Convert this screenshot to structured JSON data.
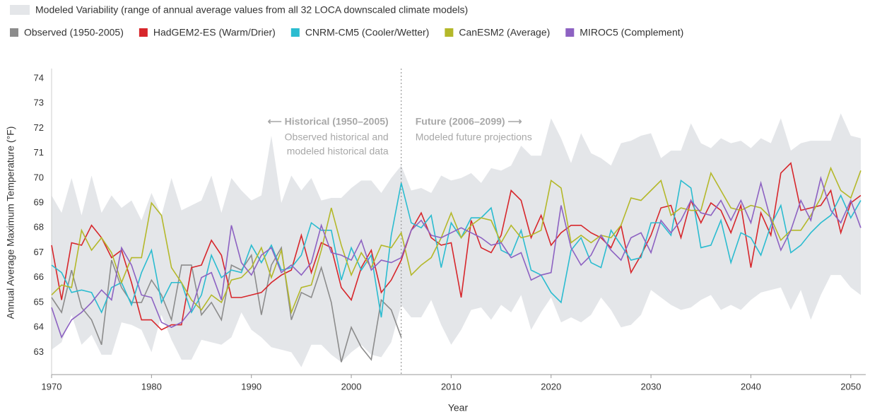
{
  "chart_data": {
    "type": "line",
    "band": {
      "name": "Modeled Variability (range of annual average values from all 32 LOCA downscaled climate models)",
      "color": "#e4e6e9",
      "upper": [
        69.3,
        68.6,
        70.0,
        68.5,
        70.1,
        68.6,
        69.3,
        68.8,
        69.1,
        68.3,
        69.4,
        68.5,
        70.0,
        68.7,
        68.9,
        69.1,
        70.1,
        68.6,
        70.0,
        69.5,
        69.1,
        69.3,
        71.7,
        69.0,
        70.1,
        69.5,
        70.0,
        69.1,
        69.2,
        69.2,
        69.6,
        69.9,
        69.9,
        69.4,
        70.0,
        70.5,
        69.5,
        69.6,
        69.4,
        70.1,
        69.9,
        70.0,
        70.2,
        69.8,
        70.4,
        70.3,
        70.5,
        71.3,
        70.9,
        70.9,
        72.4,
        71.6,
        70.6,
        71.8,
        71.0,
        70.8,
        70.5,
        71.4,
        71.5,
        71.7,
        71.8,
        70.8,
        71.1,
        71.1,
        72.2,
        71.4,
        71.2,
        71.6,
        71.4,
        71.5,
        71.2,
        71.6,
        71.4,
        72.4,
        71.1,
        71.4,
        71.5,
        71.5,
        71.5,
        72.6,
        71.7,
        71.6
      ],
      "lower": [
        63.1,
        63.4,
        64.5,
        63.3,
        63.7,
        62.9,
        62.9,
        64.2,
        64.1,
        63.9,
        63.0,
        64.5,
        63.5,
        62.7,
        62.7,
        63.5,
        63.4,
        63.3,
        63.6,
        64.6,
        63.9,
        63.6,
        63.2,
        63.1,
        63.0,
        62.4,
        63.3,
        63.3,
        62.9,
        62.6,
        63.0,
        63.3,
        62.9,
        62.8,
        63.4,
        64.9,
        64.4,
        64.4,
        65.1,
        64.1,
        63.3,
        63.9,
        64.7,
        64.8,
        64.3,
        64.9,
        64.6,
        65.3,
        63.9,
        64.6,
        65.2,
        64.2,
        64.4,
        64.2,
        64.5,
        65.2,
        64.7,
        64.0,
        64.1,
        64.5,
        65.5,
        65.2,
        64.9,
        64.7,
        64.8,
        65.1,
        65.3,
        64.7,
        64.9,
        64.7,
        65.1,
        65.4,
        65.5,
        65.6,
        64.7,
        65.5,
        64.3,
        65.3,
        66.1,
        66.1,
        65.6,
        65.3
      ]
    },
    "x": [
      1970,
      1971,
      1972,
      1973,
      1974,
      1975,
      1976,
      1977,
      1978,
      1979,
      1980,
      1981,
      1982,
      1983,
      1984,
      1985,
      1986,
      1987,
      1988,
      1989,
      1990,
      1991,
      1992,
      1993,
      1994,
      1995,
      1996,
      1997,
      1998,
      1999,
      2000,
      2001,
      2002,
      2003,
      2004,
      2005,
      2006,
      2007,
      2008,
      2009,
      2010,
      2011,
      2012,
      2013,
      2014,
      2015,
      2016,
      2017,
      2018,
      2019,
      2020,
      2021,
      2022,
      2023,
      2024,
      2025,
      2026,
      2027,
      2028,
      2029,
      2030,
      2031,
      2032,
      2033,
      2034,
      2035,
      2036,
      2037,
      2038,
      2039,
      2040,
      2041,
      2042,
      2043,
      2044,
      2045,
      2046,
      2047,
      2048,
      2049,
      2050,
      2051
    ],
    "series": [
      {
        "name": "Observed (1950-2005)",
        "color": "#8c8c8c",
        "values": [
          65.2,
          64.6,
          66.3,
          64.8,
          64.3,
          63.3,
          66.7,
          65.6,
          65.0,
          65.0,
          65.9,
          65.3,
          64.3,
          66.5,
          66.5,
          64.5,
          65.0,
          64.3,
          66.5,
          66.3,
          66.9,
          64.5,
          66.5,
          67.2,
          64.3,
          65.4,
          65.2,
          66.4,
          65.0,
          62.6,
          64.0,
          63.2,
          62.7,
          65.1,
          64.7,
          63.6,
          null,
          null,
          null,
          null,
          null,
          null,
          null,
          null,
          null,
          null,
          null,
          null,
          null,
          null,
          null,
          null,
          null,
          null,
          null,
          null,
          null,
          null,
          null,
          null,
          null,
          null,
          null,
          null,
          null,
          null,
          null,
          null,
          null,
          null,
          null,
          null,
          null,
          null,
          null,
          null,
          null,
          null,
          null,
          null,
          null,
          null
        ]
      },
      {
        "name": "HadGEM2-ES (Warm/Drier)",
        "color": "#d7262b",
        "values": [
          67.3,
          65.1,
          67.4,
          67.3,
          68.1,
          67.6,
          66.8,
          67.1,
          65.8,
          64.3,
          64.3,
          63.9,
          64.1,
          64.1,
          66.4,
          66.5,
          67.5,
          66.9,
          65.2,
          65.2,
          65.3,
          65.4,
          65.8,
          66.1,
          66.3,
          67.7,
          66.2,
          67.4,
          67.2,
          65.6,
          65.1,
          66.4,
          67.1,
          65.4,
          65.9,
          66.7,
          67.9,
          68.6,
          67.6,
          67.3,
          67.4,
          65.2,
          68.3,
          67.2,
          67.0,
          67.7,
          69.5,
          69.1,
          67.6,
          68.5,
          67.3,
          67.8,
          68.1,
          68.1,
          67.8,
          67.6,
          67.2,
          68.1,
          66.2,
          66.9,
          67.7,
          68.8,
          68.9,
          67.6,
          69.1,
          68.2,
          69.0,
          68.7,
          67.8,
          68.9,
          66.4,
          68.6,
          67.7,
          70.2,
          70.6,
          68.7,
          68.8,
          68.9,
          69.5,
          67.8,
          69.0,
          69.3
        ]
      },
      {
        "name": "CNRM-CM5 (Cooler/Wetter)",
        "color": "#2bbcd0",
        "values": [
          66.5,
          66.2,
          65.4,
          65.5,
          65.4,
          64.6,
          65.6,
          65.8,
          64.9,
          66.2,
          67.1,
          65.0,
          65.8,
          65.8,
          64.6,
          65.3,
          66.9,
          66.0,
          66.3,
          66.2,
          67.3,
          66.6,
          67.3,
          66.3,
          66.4,
          66.9,
          68.2,
          67.9,
          67.9,
          65.9,
          67.2,
          66.3,
          66.9,
          64.4,
          67.7,
          69.8,
          68.2,
          68.0,
          68.5,
          66.4,
          68.2,
          67.6,
          68.4,
          68.4,
          68.8,
          67.1,
          66.9,
          67.9,
          66.3,
          66.1,
          65.4,
          65.0,
          67.1,
          67.6,
          66.6,
          66.4,
          67.9,
          67.3,
          66.7,
          66.8,
          68.2,
          68.2,
          67.7,
          69.9,
          69.6,
          67.2,
          67.3,
          68.3,
          66.6,
          67.8,
          67.6,
          66.9,
          68.1,
          68.9,
          67.0,
          67.3,
          67.8,
          68.2,
          68.5,
          69.3,
          68.4,
          69.1
        ]
      },
      {
        "name": "CanESM2 (Average)",
        "color": "#b4b82a",
        "values": [
          65.3,
          65.7,
          65.6,
          67.9,
          67.1,
          67.6,
          67.0,
          65.8,
          66.8,
          66.8,
          69.0,
          68.5,
          66.4,
          65.8,
          65.1,
          64.7,
          65.3,
          65.0,
          65.9,
          66.0,
          66.4,
          67.2,
          66.0,
          67.1,
          64.6,
          65.6,
          65.7,
          67.1,
          68.8,
          67.3,
          66.1,
          67.0,
          66.4,
          67.3,
          67.2,
          67.8,
          66.1,
          66.5,
          66.8,
          67.6,
          68.6,
          67.6,
          68.1,
          68.4,
          68.3,
          67.4,
          68.1,
          67.6,
          67.7,
          67.9,
          69.9,
          69.6,
          67.4,
          67.7,
          67.4,
          67.7,
          67.6,
          68.1,
          69.2,
          69.1,
          69.5,
          69.9,
          68.5,
          68.8,
          68.7,
          68.7,
          70.2,
          69.5,
          68.8,
          68.7,
          68.9,
          68.8,
          68.4,
          67.5,
          67.9,
          67.9,
          68.5,
          69.2,
          70.4,
          69.5,
          69.2,
          70.3
        ]
      },
      {
        "name": "MIROC5 (Complement)",
        "color": "#8d62c2",
        "values": [
          64.8,
          63.6,
          64.3,
          64.6,
          65.0,
          65.5,
          65.1,
          67.2,
          66.5,
          65.3,
          65.2,
          64.2,
          64.0,
          64.2,
          64.7,
          66.0,
          66.2,
          65.1,
          68.1,
          66.6,
          66.1,
          66.9,
          67.2,
          66.2,
          66.5,
          66.1,
          66.6,
          68.1,
          67.0,
          66.9,
          66.7,
          67.5,
          66.3,
          66.7,
          66.6,
          66.8,
          67.9,
          68.3,
          67.7,
          67.6,
          67.8,
          68.0,
          67.8,
          67.6,
          67.3,
          67.4,
          66.8,
          67.0,
          65.9,
          66.1,
          66.2,
          68.9,
          67.2,
          66.5,
          66.9,
          67.7,
          67.1,
          66.7,
          67.6,
          67.8,
          67.0,
          68.3,
          67.8,
          68.3,
          69.1,
          68.6,
          68.5,
          69.1,
          68.3,
          69.1,
          68.2,
          69.8,
          68.3,
          67.1,
          67.9,
          69.1,
          68.3,
          70.0,
          68.7,
          68.2,
          69.1,
          68.0
        ]
      }
    ],
    "xlim": [
      1970,
      2051.5
    ],
    "ylim": [
      62.1,
      74.4
    ],
    "xticks": [
      1970,
      1980,
      1990,
      2000,
      2010,
      2020,
      2030,
      2040,
      2050
    ],
    "yticks": [
      63,
      64,
      65,
      66,
      67,
      68,
      69,
      70,
      71,
      72,
      73,
      74
    ],
    "x_label": "Year",
    "y_label": "Annual Average Maximum Temperature (°F)",
    "divider_x": 2005,
    "annotations": {
      "historical": {
        "title": "⟵ Historical (1950–2005)",
        "lines": [
          "Observed historical and",
          "modeled historical data"
        ]
      },
      "future": {
        "title": "Future (2006–2099) ⟶",
        "lines": [
          "Modeled future projections"
        ]
      }
    },
    "grid": false
  }
}
